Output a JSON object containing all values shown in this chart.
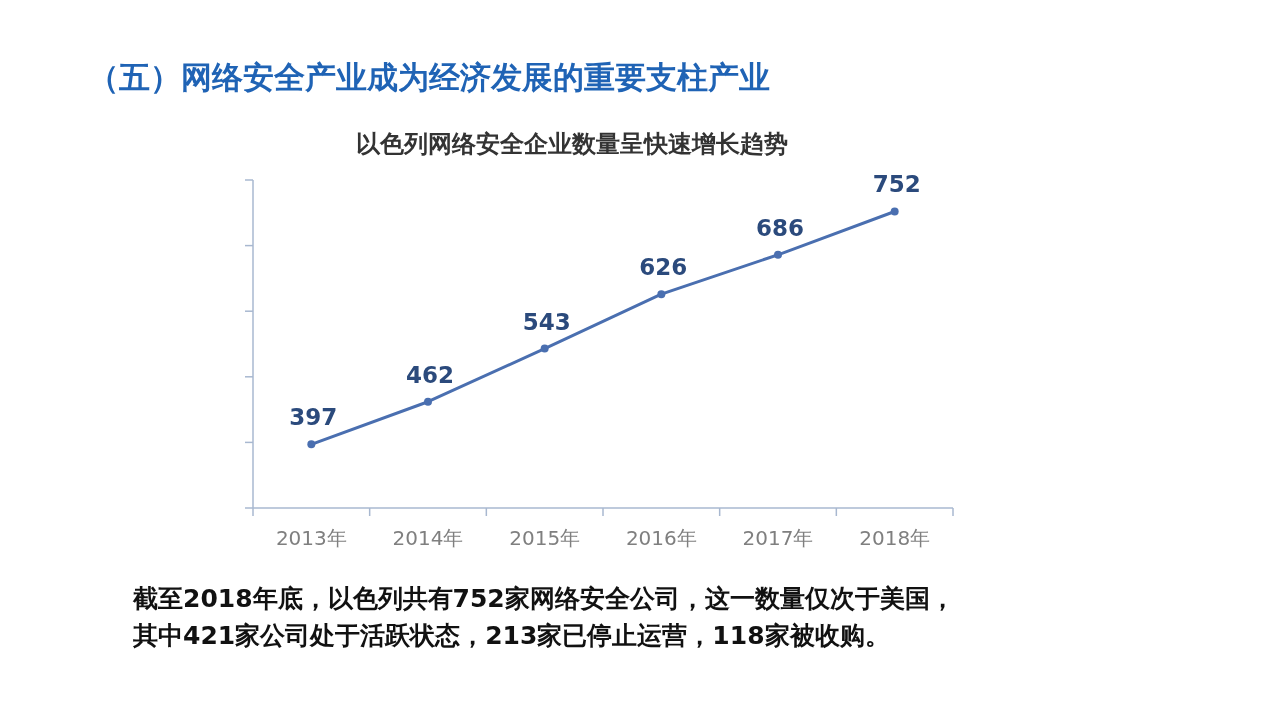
{
  "chart_data": {
    "type": "line",
    "title": "（五）网络安全产业成为经济发展的重要支柱产业",
    "subtitle": "以色列网络安全企业数量呈快速增长趋势",
    "categories": [
      "2013年",
      "2014年",
      "2015年",
      "2016年",
      "2017年",
      "2018年"
    ],
    "series": [
      {
        "color": "#4a6fb0",
        "values": [
          397,
          462,
          543,
          626,
          686,
          752
        ]
      }
    ],
    "ylim": [
      300,
      800
    ],
    "yticks": [
      {
        "value": 300,
        "label": null
      },
      {
        "value": 400,
        "label": null
      },
      {
        "value": 500,
        "label": null
      },
      {
        "value": 600,
        "label": null
      },
      {
        "value": 700,
        "label": null
      },
      {
        "value": 800,
        "label": null
      }
    ],
    "tick_labels": "x",
    "data_labels": true,
    "marker": "circle",
    "line_style": "solid",
    "grid": false,
    "annotations": [
      "截至2018年底，以色列共有752家网络安全公司，这一数量仅次于美国，",
      "其中421家公司处于活跃状态，213家已停止运营，118家被收购。"
    ]
  }
}
